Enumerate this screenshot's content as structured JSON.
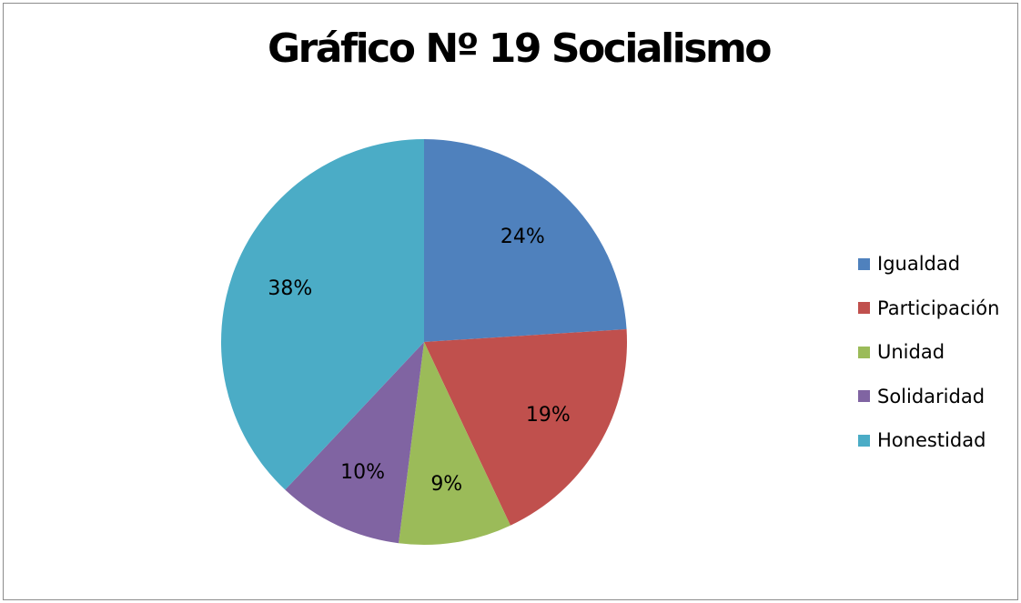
{
  "chart_data": {
    "type": "pie",
    "title": "Gráfico Nº 19 Socialismo",
    "categories": [
      "Igualdad",
      "Participación",
      "Unidad",
      "Solidaridad",
      "Honestidad"
    ],
    "values": [
      24,
      19,
      9,
      10,
      38
    ],
    "data_labels": [
      "24%",
      "19%",
      "9%",
      "10%",
      "38%"
    ],
    "colors": [
      "#4F81BD",
      "#C0504D",
      "#9BBB59",
      "#8064A2",
      "#4BACC6"
    ],
    "legend_position": "right",
    "start_angle": "top, clockwise"
  }
}
